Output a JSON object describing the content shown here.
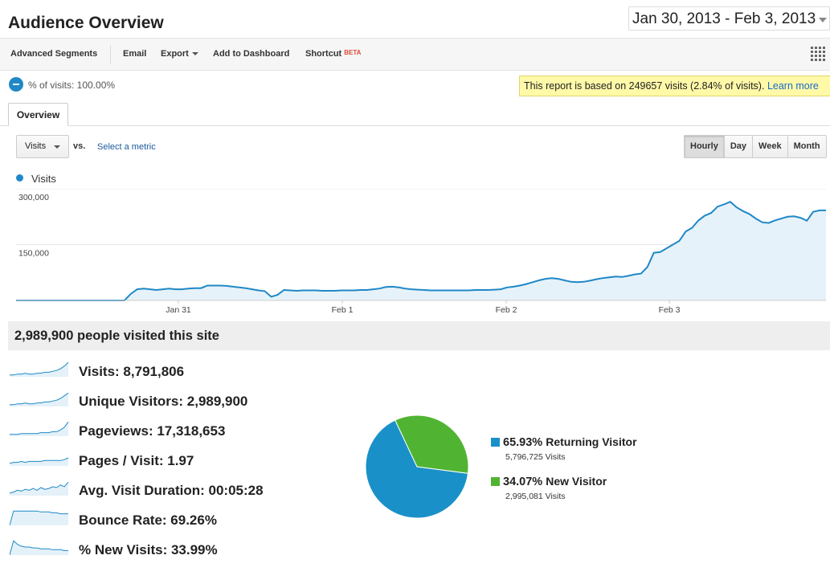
{
  "header": {
    "title": "Audience Overview",
    "date_range": "Jan 30, 2013 - Feb 3, 2013"
  },
  "toolbar": {
    "advanced_segments": "Advanced Segments",
    "email": "Email",
    "export": "Export",
    "add_to_dashboard": "Add to Dashboard",
    "shortcut": "Shortcut",
    "beta": "BETA"
  },
  "segment": {
    "label": "% of visits: 100.00%"
  },
  "notice": {
    "text": "This report is based on 249657 visits (2.84% of visits).",
    "link": "Learn more"
  },
  "tabs": {
    "overview": "Overview"
  },
  "controls": {
    "metric": "Visits",
    "vs": "vs.",
    "select_metric": "Select a metric",
    "periods": [
      "Hourly",
      "Day",
      "Week",
      "Month"
    ],
    "active_period": "Hourly"
  },
  "colors": {
    "accent": "#1f88c7",
    "returning": "#1a90c8",
    "new": "#50b432"
  },
  "chart_data": [
    {
      "type": "area",
      "series": [
        {
          "name": "Visits",
          "values": [
            0,
            0,
            0,
            0,
            0,
            0,
            0,
            0,
            0,
            0,
            0,
            0,
            0,
            0,
            0,
            0,
            0,
            0,
            18000,
            30000,
            32000,
            30000,
            28000,
            30000,
            32000,
            30000,
            30000,
            32000,
            33000,
            33000,
            40000,
            40000,
            40000,
            39000,
            37000,
            35000,
            33000,
            30000,
            27000,
            25000,
            10000,
            15000,
            28000,
            27000,
            26000,
            27000,
            27000,
            27000,
            26000,
            26000,
            26000,
            27000,
            27000,
            27000,
            28000,
            28000,
            30000,
            32000,
            36000,
            37000,
            35000,
            32000,
            30000,
            29000,
            28000,
            27000,
            27000,
            27000,
            27000,
            27000,
            27000,
            27000,
            28000,
            28000,
            28000,
            29000,
            30000,
            35000,
            37000,
            40000,
            44000,
            49000,
            54000,
            58000,
            60000,
            58000,
            54000,
            50000,
            49000,
            50000,
            53000,
            57000,
            60000,
            62000,
            64000,
            63000,
            66000,
            70000,
            72000,
            90000,
            128000,
            130000,
            140000,
            150000,
            160000,
            185000,
            195000,
            215000,
            228000,
            235000,
            252000,
            258000,
            265000,
            250000,
            240000,
            232000,
            220000,
            210000,
            208000,
            215000,
            220000,
            225000,
            226000,
            222000,
            214000,
            238000,
            242000,
            242000
          ]
        }
      ],
      "ylim": [
        0,
        300000
      ],
      "y_ticks": [
        "300,000",
        "150,000"
      ],
      "x_ticks": [
        "Jan 31",
        "Feb 1",
        "Feb 2",
        "Feb 3"
      ],
      "grid": true,
      "legend": "top-left"
    },
    {
      "type": "pie",
      "categories": [
        "Returning Visitor",
        "New Visitor"
      ],
      "values": [
        65.93,
        34.07
      ]
    }
  ],
  "summary": {
    "text": "2,989,900 people visited this site"
  },
  "metrics": [
    {
      "label": "Visits: 8,791,806",
      "spark": [
        2,
        2,
        3,
        3,
        4,
        3,
        3,
        4,
        4,
        5,
        5,
        6,
        7,
        9,
        12,
        16
      ]
    },
    {
      "label": "Unique Visitors: 2,989,900",
      "spark": [
        2,
        2,
        3,
        3,
        4,
        3,
        3,
        4,
        4,
        5,
        5,
        6,
        7,
        9,
        12,
        15
      ]
    },
    {
      "label": "Pageviews: 17,318,653",
      "spark": [
        2,
        2,
        2,
        3,
        3,
        3,
        3,
        3,
        4,
        4,
        4,
        5,
        5,
        7,
        10,
        16
      ]
    },
    {
      "label": "Pages / Visit: 1.97",
      "spark": [
        3,
        4,
        4,
        5,
        4,
        5,
        5,
        5,
        5,
        6,
        6,
        6,
        6,
        6,
        7,
        9
      ]
    },
    {
      "label": "Avg. Visit Duration: 00:05:28",
      "spark": [
        3,
        4,
        6,
        5,
        7,
        6,
        8,
        6,
        9,
        7,
        8,
        10,
        9,
        12,
        10,
        15
      ]
    },
    {
      "label": "Bounce Rate: 69.26%",
      "spark": [
        0,
        16,
        16,
        16,
        16,
        16,
        16,
        16,
        15,
        15,
        15,
        14,
        14,
        13,
        13,
        13
      ]
    },
    {
      "label": "% New Visits: 33.99%",
      "spark": [
        0,
        16,
        12,
        10,
        9,
        9,
        8,
        8,
        7,
        7,
        7,
        6,
        6,
        6,
        5,
        5
      ]
    }
  ],
  "pie_legend": {
    "returning": {
      "percent": "65.93%",
      "name": "Returning Visitor",
      "visits": "5,796,725 Visits"
    },
    "new": {
      "percent": "34.07%",
      "name": "New Visitor",
      "visits": "2,995,081 Visits"
    }
  }
}
